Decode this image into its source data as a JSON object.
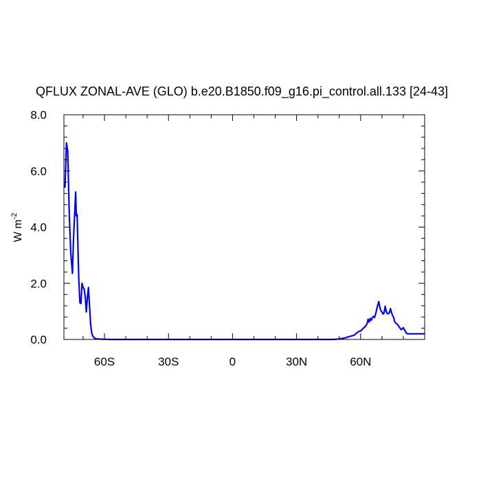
{
  "chart_data": {
    "type": "line",
    "title": "QFLUX ZONAL-AVE (GLO) b.e20.B1850.f09_g16.pi_control.all.133 [24-43]",
    "ylabel": "W m",
    "ylabel_superscript": "-2",
    "xlim": [
      -79,
      90
    ],
    "ylim": [
      0,
      8
    ],
    "x_ticks": [
      {
        "value": -60,
        "label": "60S"
      },
      {
        "value": -30,
        "label": "30S"
      },
      {
        "value": 0,
        "label": "0"
      },
      {
        "value": 30,
        "label": "30N"
      },
      {
        "value": 60,
        "label": "60N"
      }
    ],
    "y_ticks": [
      {
        "value": 0,
        "label": "0.0"
      },
      {
        "value": 2,
        "label": "2.0"
      },
      {
        "value": 4,
        "label": "4.0"
      },
      {
        "value": 6,
        "label": "6.0"
      },
      {
        "value": 8,
        "label": "8.0"
      }
    ],
    "grid": false,
    "line_color": "#0000ee",
    "series": [
      {
        "x": [
          -78.5,
          -77.8,
          -77.2,
          -76.5,
          -75.8,
          -75.0,
          -74.5,
          -74.0,
          -73.5,
          -73.2,
          -72.8,
          -72.4,
          -72.0,
          -71.5,
          -71.0,
          -70.5,
          -70.0,
          -69.5,
          -69.0,
          -68.5,
          -68.0,
          -67.5,
          -67.0,
          -66.5,
          -66.0,
          -65.5,
          -65.0,
          -64.5,
          -64.0,
          -63.5,
          -63.0,
          -62.0,
          -61.0,
          -60.0,
          -58.0,
          -55.0,
          -50.0,
          -40.0,
          -30.0,
          -20.0,
          -10.0,
          0.0,
          10.0,
          20.0,
          30.0,
          40.0,
          47.0,
          49.0,
          51.0,
          53.0,
          54.5,
          56.0,
          57.0,
          58.0,
          59.0,
          60.0,
          61.0,
          62.0,
          63.0,
          63.5,
          64.0,
          64.5,
          65.0,
          65.5,
          66.0,
          66.5,
          67.0,
          67.5,
          68.0,
          68.5,
          69.0,
          69.5,
          70.0,
          70.5,
          71.0,
          71.5,
          72.0,
          72.5,
          73.0,
          73.5,
          74.0,
          74.5,
          75.0,
          75.5,
          76.0,
          76.5,
          77.0,
          77.5,
          78.0,
          78.5,
          79.0,
          79.5,
          80.0,
          80.5,
          81.0,
          81.5,
          82.0,
          82.5,
          83.0,
          84.0,
          85.0,
          86.0,
          87.0,
          88.0,
          89.0,
          90.0
        ],
        "y": [
          5.4,
          7.0,
          6.7,
          4.5,
          3.1,
          2.35,
          3.6,
          4.4,
          5.25,
          4.4,
          4.45,
          3.2,
          2.1,
          1.3,
          1.28,
          2.0,
          1.85,
          1.8,
          1.5,
          0.98,
          1.5,
          1.85,
          1.2,
          0.55,
          0.25,
          0.12,
          0.07,
          0.04,
          0.03,
          0.02,
          0.02,
          0.01,
          0.01,
          0.01,
          0.0,
          0.0,
          0.0,
          0.0,
          0.0,
          0.0,
          0.0,
          0.0,
          0.0,
          0.0,
          0.0,
          0.0,
          0.0,
          0.01,
          0.03,
          0.06,
          0.1,
          0.13,
          0.15,
          0.22,
          0.28,
          0.3,
          0.38,
          0.45,
          0.55,
          0.72,
          0.62,
          0.75,
          0.68,
          0.78,
          0.82,
          0.78,
          0.9,
          1.05,
          1.22,
          1.35,
          1.15,
          1.02,
          0.98,
          0.9,
          0.95,
          1.18,
          1.0,
          0.92,
          0.92,
          0.95,
          1.1,
          0.95,
          0.85,
          0.78,
          0.62,
          0.58,
          0.55,
          0.52,
          0.45,
          0.4,
          0.35,
          0.38,
          0.42,
          0.35,
          0.28,
          0.22,
          0.2,
          0.2,
          0.2,
          0.2,
          0.2,
          0.2,
          0.2,
          0.2,
          0.2,
          0.2
        ]
      }
    ]
  }
}
